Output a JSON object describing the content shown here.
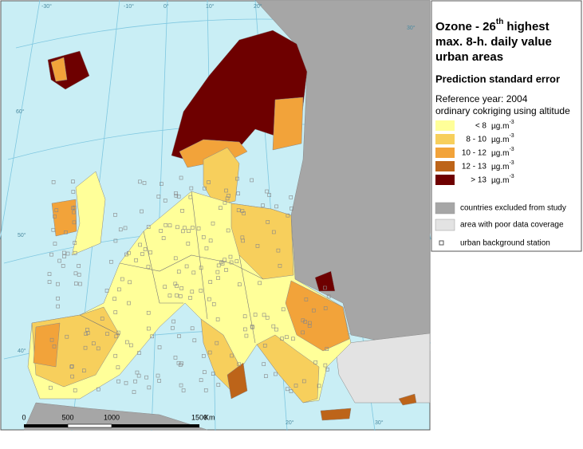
{
  "title": {
    "line1": "Ozone - 26",
    "sup": "th",
    "line1b": "highest",
    "line2": "max. 8-h. daily value",
    "line3": "urban areas"
  },
  "subtitle": "Prediction standard error",
  "reference": "Reference year: 2004",
  "method": "ordinary cokriging using altitude",
  "legend": {
    "unit": "µg.m",
    "unit_sup": "-3",
    "classes": [
      {
        "label": "< 8",
        "color": "#ffff99"
      },
      {
        "label": "8 - 10",
        "color": "#f7cf5c"
      },
      {
        "label": "10 - 12",
        "color": "#f2a33a"
      },
      {
        "label": "12 - 13",
        "color": "#bd6419"
      },
      {
        "label": "> 13",
        "color": "#6e0000"
      }
    ]
  },
  "other_legend": [
    {
      "label": "countries excluded from study",
      "color": "#a6a6a6"
    },
    {
      "label": "area with poor data coverage",
      "color": "#e3e3e3"
    }
  ],
  "station_legend": "urban background station",
  "scale": {
    "labels": [
      "0",
      "500",
      "1000",
      "1500"
    ],
    "unit": "Km"
  },
  "graticule": {
    "top": [
      "-30°",
      "-10°",
      "0°",
      "10°",
      "20°",
      "30°"
    ],
    "left": [
      "60°",
      "50°",
      "40°"
    ],
    "bottom": [
      "20°",
      "30°"
    ]
  },
  "sea_color": "#c9eef5"
}
